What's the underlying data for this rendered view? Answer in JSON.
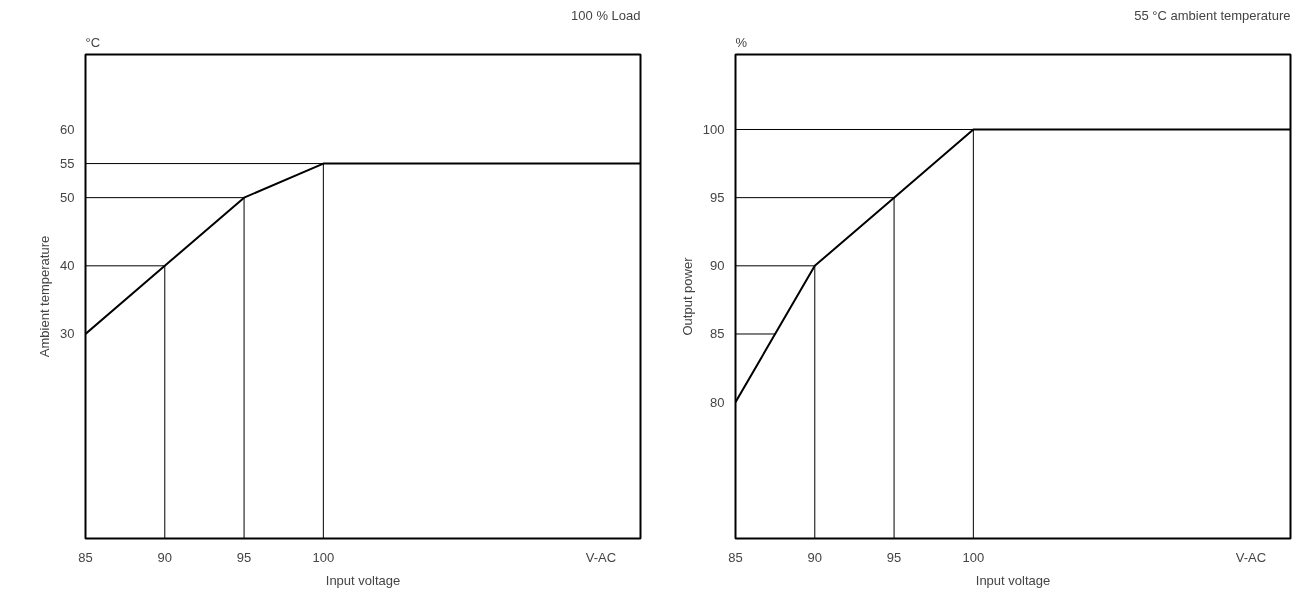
{
  "chart_data": [
    {
      "type": "line",
      "title": "100 % Load",
      "xlabel": "Input voltage",
      "ylabel": "Ambient temperature",
      "annotations": [
        "°C"
      ],
      "xlim": [
        85,
        120
      ],
      "xticks": [
        85,
        90,
        95,
        100,
        {
          "value": 117.5,
          "label": "V-AC"
        }
      ],
      "ylim": [
        0,
        71
      ],
      "yticks": [
        30,
        40,
        50,
        55,
        60
      ],
      "grid": false,
      "series": [
        {
          "color": "#000000",
          "x": [
            85,
            90,
            95,
            100,
            120
          ],
          "values": [
            30,
            40,
            50,
            55,
            55
          ]
        },
        {
          "color": "#000000",
          "x": [
            85,
            90
          ],
          "values": [
            40,
            40
          ]
        },
        {
          "color": "#000000",
          "x": [
            85,
            95
          ],
          "values": [
            50,
            50
          ]
        },
        {
          "color": "#000000",
          "x": [
            85,
            100
          ],
          "values": [
            55,
            55
          ]
        },
        {
          "color": "#000000",
          "x": [
            90,
            90
          ],
          "values": [
            0,
            40
          ]
        },
        {
          "color": "#000000",
          "x": [
            95,
            95
          ],
          "values": [
            0,
            50
          ]
        },
        {
          "color": "#000000",
          "x": [
            100,
            100
          ],
          "values": [
            0,
            55
          ]
        }
      ]
    },
    {
      "type": "line",
      "title": "55 °C ambient temperature",
      "xlabel": "Input voltage",
      "ylabel": "Output power",
      "annotations": [
        "%"
      ],
      "xlim": [
        85,
        120
      ],
      "xticks": [
        85,
        90,
        95,
        100,
        {
          "value": 117.5,
          "label": "V-AC"
        }
      ],
      "ylim": [
        70,
        105.5
      ],
      "yticks": [
        80,
        85,
        90,
        95,
        100
      ],
      "grid": false,
      "series": [
        {
          "color": "#000000",
          "x": [
            85,
            90,
            95,
            100,
            120
          ],
          "values": [
            80,
            90,
            95,
            100,
            100
          ]
        },
        {
          "color": "#000000",
          "x": [
            85,
            87.5
          ],
          "values": [
            85,
            85
          ]
        },
        {
          "color": "#000000",
          "x": [
            85,
            90
          ],
          "values": [
            90,
            90
          ]
        },
        {
          "color": "#000000",
          "x": [
            85,
            95
          ],
          "values": [
            95,
            95
          ]
        },
        {
          "color": "#000000",
          "x": [
            85,
            100
          ],
          "values": [
            100,
            100
          ]
        },
        {
          "color": "#000000",
          "x": [
            90,
            90
          ],
          "values": [
            70,
            90
          ]
        },
        {
          "color": "#000000",
          "x": [
            95,
            95
          ],
          "values": [
            70,
            95
          ]
        },
        {
          "color": "#000000",
          "x": [
            100,
            100
          ],
          "values": [
            70,
            100
          ]
        }
      ]
    }
  ]
}
